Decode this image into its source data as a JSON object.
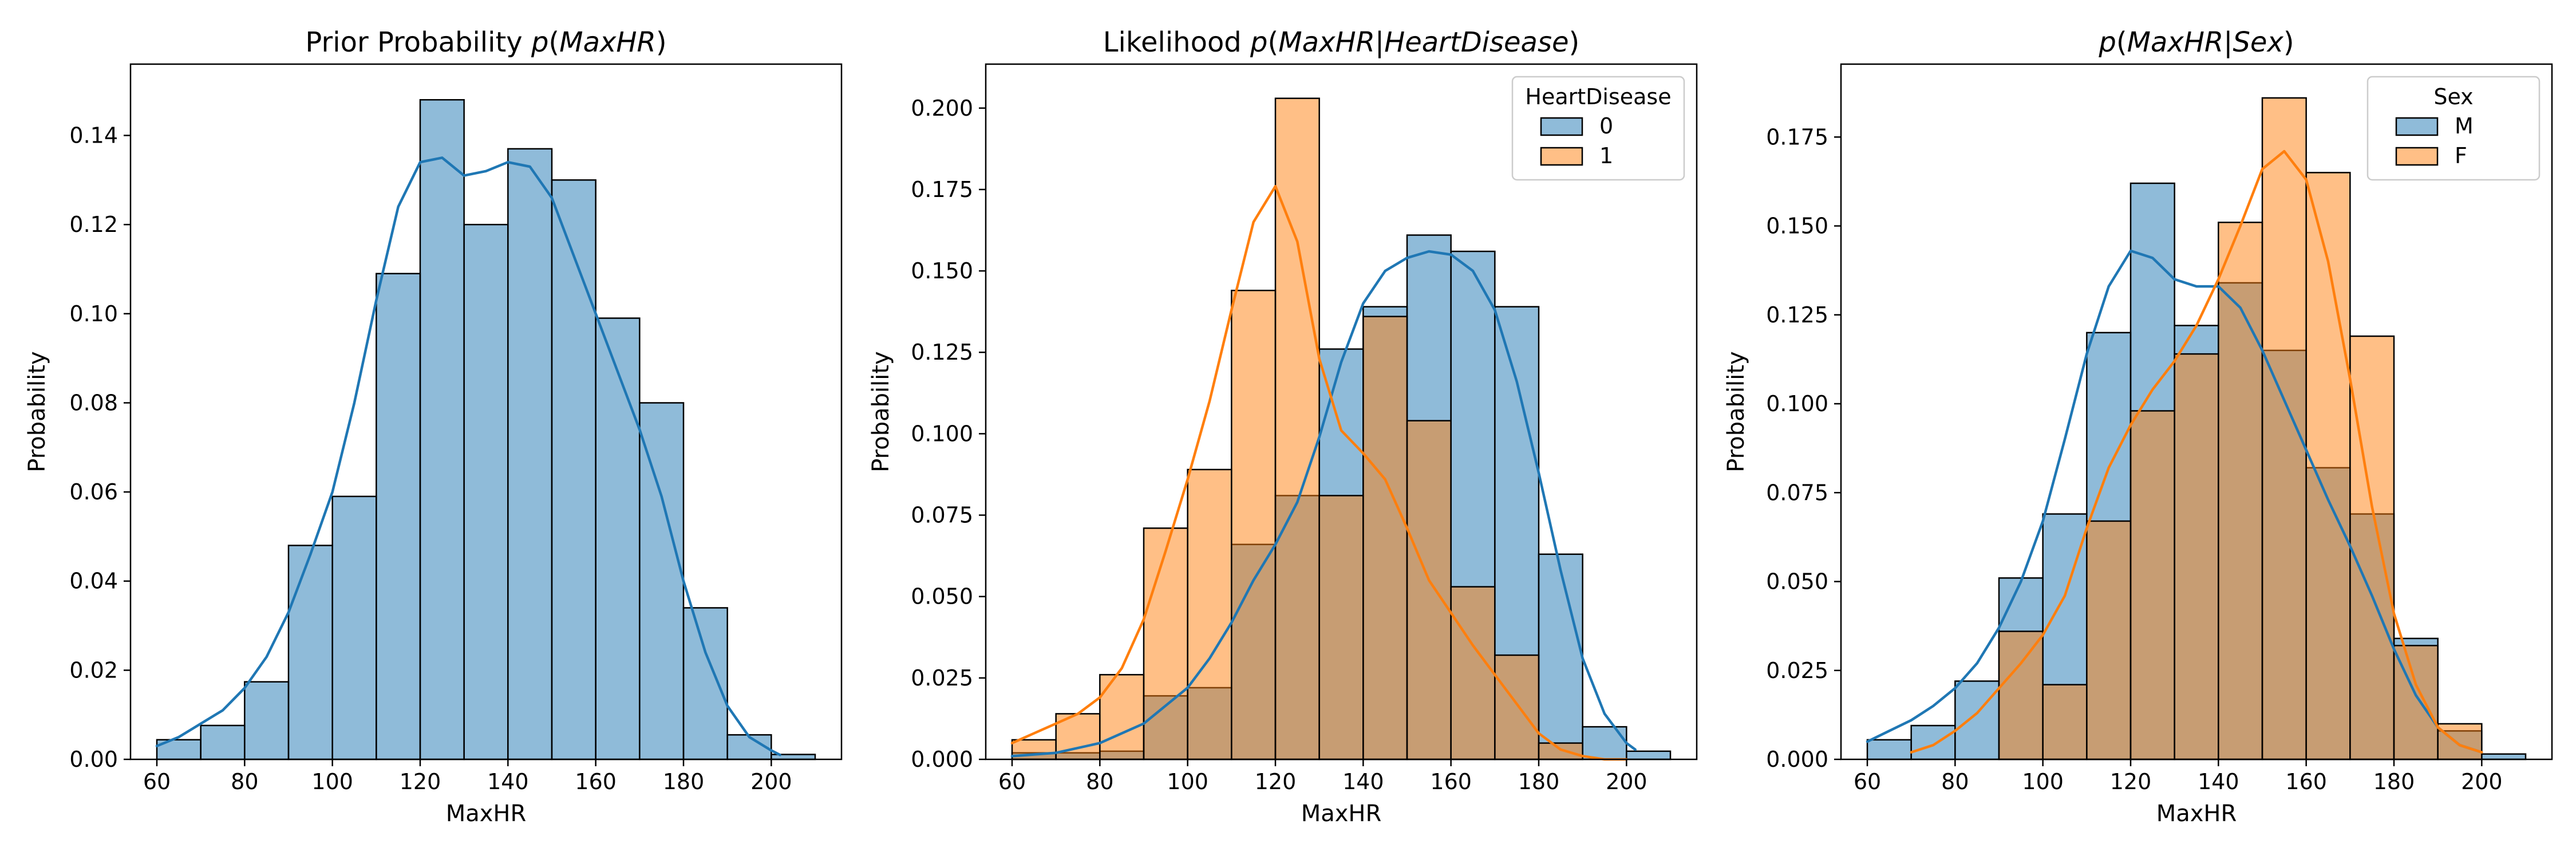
{
  "chart_data": [
    {
      "type": "bar",
      "title_parts": [
        {
          "text": "Prior Probability ",
          "italic": false
        },
        {
          "text": "p",
          "italic": true
        },
        {
          "text": "(",
          "italic": false
        },
        {
          "text": "MaxHR",
          "italic": true
        },
        {
          "text": ")",
          "italic": false
        }
      ],
      "xlabel": "MaxHR",
      "ylabel": "Probability",
      "xlim": [
        54,
        216
      ],
      "ylim": [
        0,
        0.156
      ],
      "xticks": [
        60,
        80,
        100,
        120,
        140,
        160,
        180,
        200
      ],
      "xtick_labels": [
        "60",
        "80",
        "100",
        "120",
        "140",
        "160",
        "180",
        "200"
      ],
      "yticks": [
        0,
        0.02,
        0.04,
        0.06,
        0.08,
        0.1,
        0.12,
        0.14
      ],
      "ytick_labels": [
        "0.00",
        "0.02",
        "0.04",
        "0.06",
        "0.08",
        "0.10",
        "0.12",
        "0.14"
      ],
      "bin_edges": [
        60,
        70,
        80,
        90,
        100,
        110,
        120,
        130,
        140,
        150,
        160,
        170,
        180,
        190,
        200,
        210
      ],
      "legend": null,
      "series": [
        {
          "color": "#1f77b4",
          "values": [
            0.0044,
            0.0076,
            0.0174,
            0.048,
            0.059,
            0.109,
            0.148,
            0.12,
            0.137,
            0.13,
            0.099,
            0.08,
            0.034,
            0.0055,
            0.0011
          ],
          "kde_x": [
            60,
            65,
            70,
            75,
            80,
            85,
            90,
            95,
            100,
            105,
            110,
            115,
            120,
            125,
            130,
            135,
            140,
            145,
            150,
            155,
            160,
            165,
            170,
            175,
            180,
            185,
            190,
            195,
            200,
            202
          ],
          "kde_y": [
            0.003,
            0.005,
            0.008,
            0.011,
            0.016,
            0.023,
            0.033,
            0.046,
            0.06,
            0.08,
            0.103,
            0.124,
            0.134,
            0.135,
            0.131,
            0.132,
            0.134,
            0.133,
            0.126,
            0.113,
            0.1,
            0.087,
            0.074,
            0.059,
            0.04,
            0.024,
            0.012,
            0.005,
            0.002,
            0.001
          ]
        }
      ]
    },
    {
      "type": "bar",
      "title_parts": [
        {
          "text": "Likelihood ",
          "italic": false
        },
        {
          "text": "p",
          "italic": true
        },
        {
          "text": "(",
          "italic": false
        },
        {
          "text": "MaxHR",
          "italic": true
        },
        {
          "text": "|",
          "italic": false
        },
        {
          "text": "HeartDisease",
          "italic": true
        },
        {
          "text": ")",
          "italic": false
        }
      ],
      "xlabel": "MaxHR",
      "ylabel": "Probability",
      "xlim": [
        54,
        216
      ],
      "ylim": [
        0,
        0.2135
      ],
      "xticks": [
        60,
        80,
        100,
        120,
        140,
        160,
        180,
        200
      ],
      "xtick_labels": [
        "60",
        "80",
        "100",
        "120",
        "140",
        "160",
        "180",
        "200"
      ],
      "yticks": [
        0,
        0.025,
        0.05,
        0.075,
        0.1,
        0.125,
        0.15,
        0.175,
        0.2
      ],
      "ytick_labels": [
        "0.000",
        "0.025",
        "0.050",
        "0.075",
        "0.100",
        "0.125",
        "0.150",
        "0.175",
        "0.200"
      ],
      "bin_edges": [
        60,
        70,
        80,
        90,
        100,
        110,
        120,
        130,
        140,
        150,
        160,
        170,
        180,
        190,
        200,
        210
      ],
      "legend": {
        "title": "HeartDisease",
        "labels": [
          "0",
          "1"
        ],
        "position": "top-right"
      },
      "series": [
        {
          "name": "0",
          "color": "#1f77b4",
          "values": [
            0.002,
            0.002,
            0.0025,
            0.0195,
            0.022,
            0.066,
            0.081,
            0.126,
            0.139,
            0.161,
            0.156,
            0.139,
            0.063,
            0.01,
            0.0025
          ],
          "kde_x": [
            60,
            70,
            80,
            90,
            100,
            105,
            110,
            115,
            120,
            125,
            130,
            135,
            140,
            145,
            150,
            155,
            160,
            165,
            170,
            175,
            180,
            185,
            190,
            195,
            200,
            202
          ],
          "kde_y": [
            0.001,
            0.002,
            0.005,
            0.011,
            0.022,
            0.031,
            0.042,
            0.055,
            0.066,
            0.079,
            0.099,
            0.122,
            0.14,
            0.15,
            0.154,
            0.156,
            0.155,
            0.15,
            0.138,
            0.116,
            0.088,
            0.058,
            0.031,
            0.014,
            0.005,
            0.003
          ]
        },
        {
          "name": "1",
          "color": "#ff7f0e",
          "values": [
            0.006,
            0.014,
            0.026,
            0.071,
            0.089,
            0.144,
            0.203,
            0.081,
            0.136,
            0.104,
            0.053,
            0.032,
            0.005,
            0,
            0
          ],
          "kde_x": [
            60,
            65,
            70,
            75,
            80,
            85,
            90,
            95,
            100,
            105,
            110,
            115,
            120,
            125,
            130,
            135,
            140,
            145,
            150,
            155,
            160,
            165,
            170,
            175,
            180,
            185,
            190,
            195,
            200
          ],
          "kde_y": [
            0.005,
            0.008,
            0.011,
            0.014,
            0.019,
            0.028,
            0.043,
            0.064,
            0.086,
            0.11,
            0.138,
            0.165,
            0.176,
            0.159,
            0.123,
            0.101,
            0.094,
            0.086,
            0.071,
            0.055,
            0.045,
            0.035,
            0.026,
            0.017,
            0.008,
            0.003,
            0.001,
            0.0,
            0.0
          ]
        }
      ]
    },
    {
      "type": "bar",
      "title_parts": [
        {
          "text": "p",
          "italic": true
        },
        {
          "text": "(",
          "italic": false
        },
        {
          "text": "MaxHR",
          "italic": true
        },
        {
          "text": "|",
          "italic": false
        },
        {
          "text": "Sex",
          "italic": true
        },
        {
          "text": ")",
          "italic": false
        }
      ],
      "xlabel": "MaxHR",
      "ylabel": "Probability",
      "xlim": [
        54,
        216
      ],
      "ylim": [
        0,
        0.1955
      ],
      "xticks": [
        60,
        80,
        100,
        120,
        140,
        160,
        180,
        200
      ],
      "xtick_labels": [
        "60",
        "80",
        "100",
        "120",
        "140",
        "160",
        "180",
        "200"
      ],
      "yticks": [
        0,
        0.025,
        0.05,
        0.075,
        0.1,
        0.125,
        0.15,
        0.175
      ],
      "ytick_labels": [
        "0.000",
        "0.025",
        "0.050",
        "0.075",
        "0.100",
        "0.125",
        "0.150",
        "0.175"
      ],
      "bin_edges": [
        60,
        70,
        80,
        90,
        100,
        110,
        120,
        130,
        140,
        150,
        160,
        170,
        180,
        190,
        200,
        210
      ],
      "legend": {
        "title": "Sex",
        "labels": [
          "M",
          "F"
        ],
        "position": "top-right"
      },
      "series": [
        {
          "name": "M",
          "color": "#1f77b4",
          "values": [
            0.0055,
            0.0095,
            0.022,
            0.051,
            0.069,
            0.12,
            0.162,
            0.122,
            0.134,
            0.115,
            0.082,
            0.069,
            0.034,
            0.008,
            0.0015
          ],
          "kde_x": [
            60,
            65,
            70,
            75,
            80,
            85,
            90,
            95,
            100,
            105,
            110,
            115,
            120,
            125,
            130,
            135,
            140,
            145,
            150,
            155,
            160,
            165,
            170,
            175,
            180,
            185,
            190,
            195,
            200
          ],
          "kde_y": [
            0.005,
            0.008,
            0.011,
            0.015,
            0.02,
            0.027,
            0.037,
            0.05,
            0.067,
            0.09,
            0.114,
            0.133,
            0.143,
            0.141,
            0.135,
            0.133,
            0.133,
            0.127,
            0.115,
            0.101,
            0.087,
            0.073,
            0.06,
            0.046,
            0.031,
            0.018,
            0.009,
            0.004,
            0.002
          ]
        },
        {
          "name": "F",
          "color": "#ff7f0e",
          "values": [
            0,
            0,
            0,
            0.036,
            0.021,
            0.067,
            0.098,
            0.114,
            0.151,
            0.186,
            0.165,
            0.119,
            0.032,
            0.01,
            0
          ],
          "kde_x": [
            70,
            75,
            80,
            85,
            90,
            95,
            100,
            105,
            110,
            115,
            120,
            125,
            130,
            135,
            140,
            145,
            150,
            155,
            160,
            165,
            170,
            175,
            180,
            185,
            190,
            195,
            200
          ],
          "kde_y": [
            0.002,
            0.004,
            0.008,
            0.013,
            0.02,
            0.027,
            0.035,
            0.046,
            0.065,
            0.082,
            0.094,
            0.104,
            0.112,
            0.122,
            0.135,
            0.15,
            0.166,
            0.171,
            0.163,
            0.14,
            0.107,
            0.071,
            0.041,
            0.021,
            0.009,
            0.004,
            0.002
          ]
        }
      ]
    }
  ]
}
